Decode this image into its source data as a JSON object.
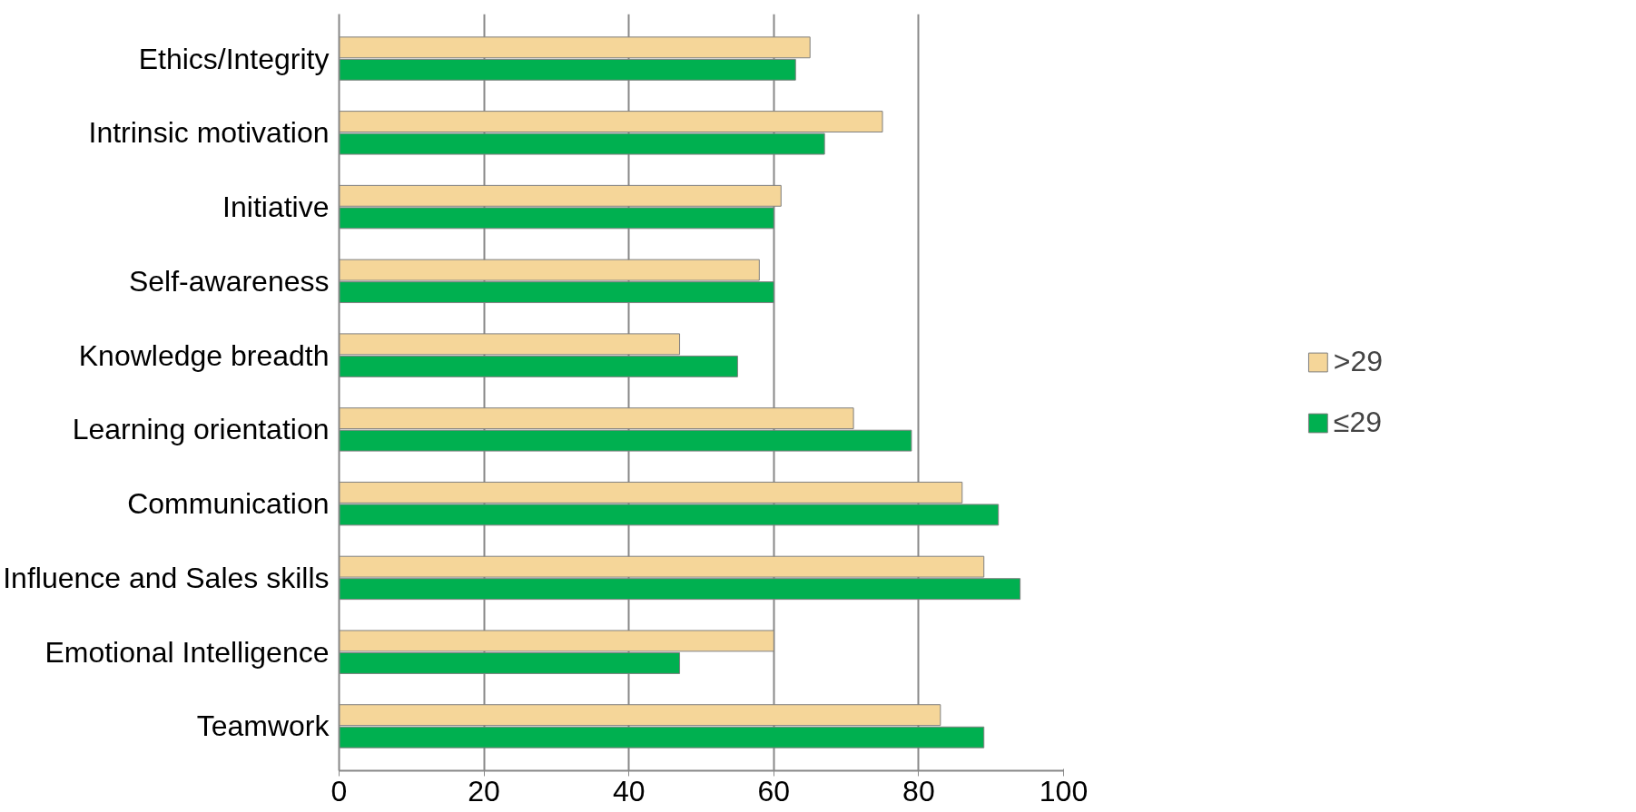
{
  "chart_data": {
    "type": "bar",
    "orientation": "horizontal",
    "categories": [
      "Ethics/Integrity",
      "Intrinsic motivation",
      "Initiative",
      "Self-awareness",
      "Knowledge breadth",
      "Learning orientation",
      "Communication",
      "Influence and Sales skills",
      "Emotional Intelligence",
      "Teamwork"
    ],
    "series": [
      {
        "name": ">29",
        "color": "#f5d699",
        "values": [
          65,
          75,
          61,
          58,
          47,
          71,
          86,
          89,
          60,
          83
        ]
      },
      {
        "name": "≤29",
        "color": "#00b050",
        "values": [
          63,
          67,
          60,
          60,
          55,
          79,
          91,
          94,
          47,
          89
        ]
      }
    ],
    "xlim": [
      0,
      100
    ],
    "xticks": [
      0,
      20,
      40,
      60,
      80,
      100
    ],
    "grid": "x",
    "legend": "right"
  }
}
